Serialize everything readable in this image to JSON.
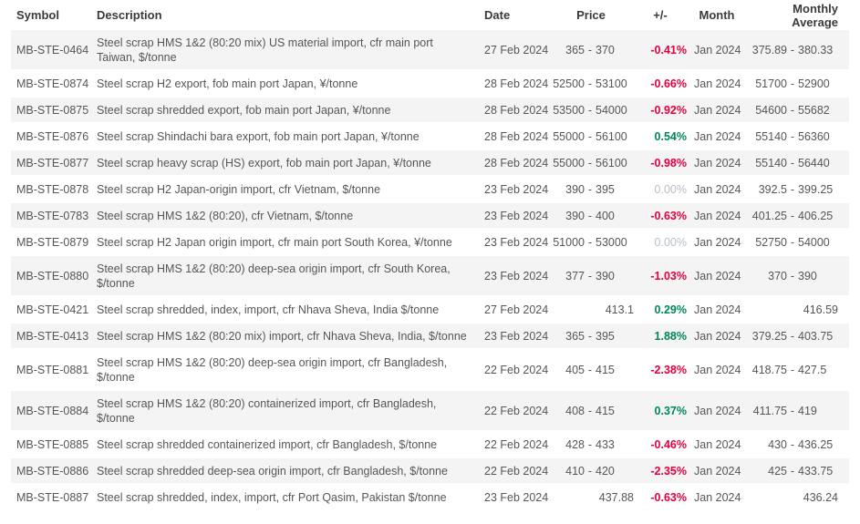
{
  "table": {
    "range_separator": "-",
    "colors": {
      "negative": "#e4003c",
      "positive": "#00885c",
      "neutral": "#b8bfc7",
      "row_stripe": "#f4f4f4"
    },
    "columns": {
      "symbol": "Symbol",
      "description": "Description",
      "date": "Date",
      "price": "Price",
      "change": "+/-",
      "month": "Month",
      "monthly_average": "Monthly Average"
    },
    "rows": [
      {
        "symbol": "MB-STE-0464",
        "description": "Steel scrap HMS 1&2 (80:20 mix) US material import, cfr main port Taiwan, $/tonne",
        "date": "27 Feb 2024",
        "price": {
          "low": "365",
          "high": "370"
        },
        "change": "-0.41%",
        "trend": "negative",
        "month": "Jan 2024",
        "average": {
          "low": "375.89",
          "high": "380.33"
        }
      },
      {
        "symbol": "MB-STE-0874",
        "description": "Steel scrap H2 export, fob main port Japan, ¥/tonne",
        "date": "28 Feb 2024",
        "price": {
          "low": "52500",
          "high": "53100"
        },
        "change": "-0.66%",
        "trend": "negative",
        "month": "Jan 2024",
        "average": {
          "low": "51700",
          "high": "52900"
        }
      },
      {
        "symbol": "MB-STE-0875",
        "description": "Steel scrap shredded export, fob main port Japan, ¥/tonne",
        "date": "28 Feb 2024",
        "price": {
          "low": "53500",
          "high": "54000"
        },
        "change": "-0.92%",
        "trend": "negative",
        "month": "Jan 2024",
        "average": {
          "low": "54600",
          "high": "55682"
        }
      },
      {
        "symbol": "MB-STE-0876",
        "description": "Steel scrap Shindachi bara export, fob main port Japan, ¥/tonne",
        "date": "28 Feb 2024",
        "price": {
          "low": "55000",
          "high": "56100"
        },
        "change": "0.54%",
        "trend": "positive",
        "month": "Jan 2024",
        "average": {
          "low": "55140",
          "high": "56360"
        }
      },
      {
        "symbol": "MB-STE-0877",
        "description": "Steel scrap heavy scrap (HS) export, fob main port Japan, ¥/tonne",
        "date": "28 Feb 2024",
        "price": {
          "low": "55000",
          "high": "56100"
        },
        "change": "-0.98%",
        "trend": "negative",
        "month": "Jan 2024",
        "average": {
          "low": "55140",
          "high": "56440"
        }
      },
      {
        "symbol": "MB-STE-0878",
        "description": "Steel scrap H2 Japan-origin import, cfr Vietnam, $/tonne",
        "date": "23 Feb 2024",
        "price": {
          "low": "390",
          "high": "395"
        },
        "change": "0.00%",
        "trend": "neutral",
        "month": "Jan 2024",
        "average": {
          "low": "392.5",
          "high": "399.25"
        }
      },
      {
        "symbol": "MB-STE-0783",
        "description": "Steel scrap HMS 1&2 (80:20), cfr Vietnam, $/tonne",
        "date": "23 Feb 2024",
        "price": {
          "low": "390",
          "high": "400"
        },
        "change": "-0.63%",
        "trend": "negative",
        "month": "Jan 2024",
        "average": {
          "low": "401.25",
          "high": "406.25"
        }
      },
      {
        "symbol": "MB-STE-0879",
        "description": "Steel scrap H2 Japan origin import, cfr main port South Korea, ¥/tonne",
        "date": "23 Feb 2024",
        "price": {
          "low": "51000",
          "high": "53000"
        },
        "change": "0.00%",
        "trend": "neutral",
        "month": "Jan 2024",
        "average": {
          "low": "52750",
          "high": "54000"
        }
      },
      {
        "symbol": "MB-STE-0880",
        "description": "Steel scrap HMS 1&2 (80:20) deep-sea origin import, cfr South Korea, $/tonne",
        "date": "23 Feb 2024",
        "price": {
          "low": "377",
          "high": "390"
        },
        "change": "-1.03%",
        "trend": "negative",
        "month": "Jan 2024",
        "average": {
          "low": "370",
          "high": "390"
        }
      },
      {
        "symbol": "MB-STE-0421",
        "description": "Steel scrap shredded, index, import, cfr Nhava Sheva, India $/tonne",
        "date": "27 Feb 2024",
        "price": {
          "value": "413.1"
        },
        "change": "0.29%",
        "trend": "positive",
        "month": "Jan 2024",
        "average": {
          "value": "416.59"
        }
      },
      {
        "symbol": "MB-STE-0413",
        "description": "Steel scrap HMS 1&2 (80:20 mix) import, cfr Nhava Sheva, India, $/tonne",
        "date": "23 Feb 2024",
        "price": {
          "low": "365",
          "high": "395"
        },
        "change": "1.88%",
        "trend": "positive",
        "month": "Jan 2024",
        "average": {
          "low": "379.25",
          "high": "403.75"
        }
      },
      {
        "symbol": "MB-STE-0881",
        "description": "Steel scrap HMS 1&2 (80:20) deep-sea origin import, cfr Bangladesh, $/tonne",
        "date": "22 Feb 2024",
        "price": {
          "low": "405",
          "high": "415"
        },
        "change": "-2.38%",
        "trend": "negative",
        "month": "Jan 2024",
        "average": {
          "low": "418.75",
          "high": "427.5"
        }
      },
      {
        "symbol": "MB-STE-0884",
        "description": "Steel scrap HMS 1&2 (80:20) containerized import, cfr Bangladesh, $/tonne",
        "date": "22 Feb 2024",
        "price": {
          "low": "408",
          "high": "415"
        },
        "change": "0.37%",
        "trend": "positive",
        "month": "Jan 2024",
        "average": {
          "low": "411.75",
          "high": "419"
        }
      },
      {
        "symbol": "MB-STE-0885",
        "description": "Steel scrap shredded containerized import, cfr Bangladesh, $/tonne",
        "date": "22 Feb 2024",
        "price": {
          "low": "428",
          "high": "433"
        },
        "change": "-0.46%",
        "trend": "negative",
        "month": "Jan 2024",
        "average": {
          "low": "430",
          "high": "436.25"
        }
      },
      {
        "symbol": "MB-STE-0886",
        "description": "Steel scrap shredded deep-sea origin import, cfr Bangladesh, $/tonne",
        "date": "22 Feb 2024",
        "price": {
          "low": "410",
          "high": "420"
        },
        "change": "-2.35%",
        "trend": "negative",
        "month": "Jan 2024",
        "average": {
          "low": "425",
          "high": "433.75"
        }
      },
      {
        "symbol": "MB-STE-0887",
        "description": "Steel scrap shredded, index, import, cfr Port Qasim, Pakistan $/tonne",
        "date": "23 Feb 2024",
        "price": {
          "value": "437.88"
        },
        "change": "-0.63%",
        "trend": "negative",
        "month": "Jan 2024",
        "average": {
          "value": "436.24"
        }
      }
    ]
  }
}
